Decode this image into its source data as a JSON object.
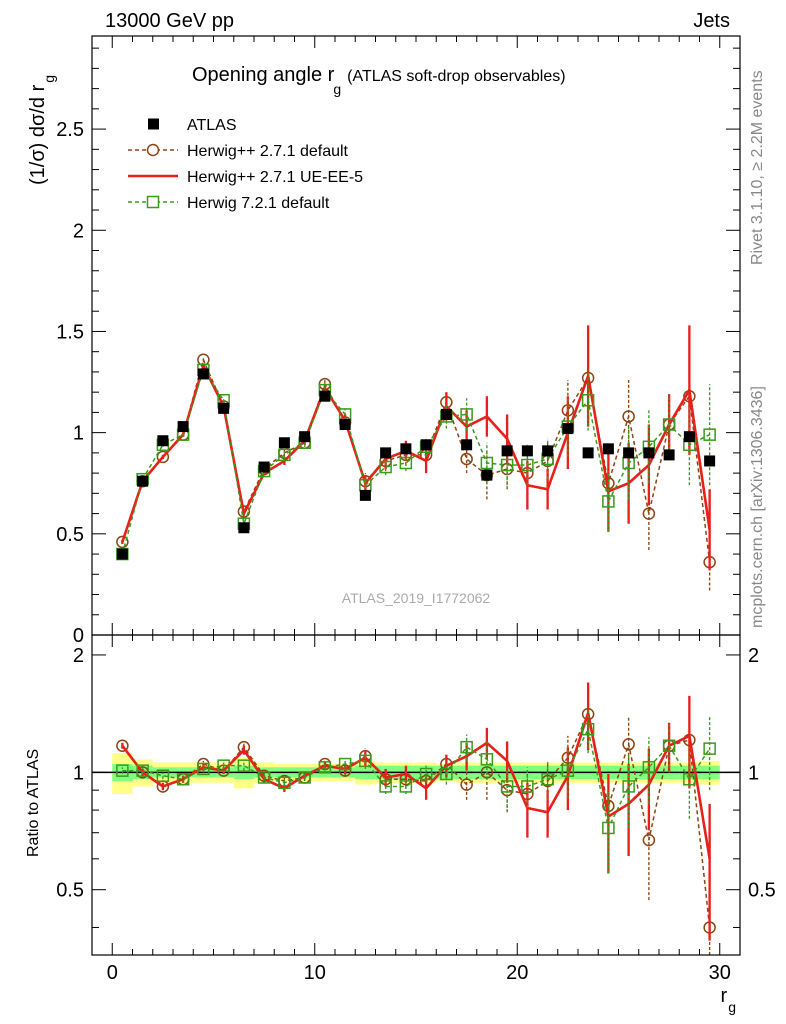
{
  "header": {
    "left": "13000 GeV pp",
    "right": "Jets"
  },
  "side_text": {
    "top": "Rivet 3.1.10, ≥ 2.2M events",
    "bottom": "mcplots.cern.ch [arXiv:1306.3436]"
  },
  "main_title": {
    "main": "Opening angle r",
    "sub": "g",
    "rest": "(ATLAS soft-drop observables)"
  },
  "watermark": "ATLAS_2019_I1772062",
  "colors": {
    "data": "#000000",
    "herwigpp_default": "#8B4513",
    "herwigpp_ueee5": "#e8201a",
    "herwig7": "#3a9a1a",
    "band_inner": "#80ff80",
    "band_outer": "#ffff88"
  },
  "chart_data": [
    {
      "type": "scatter",
      "panel": "main",
      "ylabel": "(1/σ) dσ/d r",
      "ylabel_sub": "g",
      "xlim": [
        -1,
        31
      ],
      "ylim": [
        0,
        2.96
      ],
      "yticks": [
        0,
        0.5,
        1,
        1.5,
        2,
        2.5
      ],
      "ytick_labels": [
        "0",
        "0.5",
        "1",
        "1.5",
        "2",
        "2.5"
      ],
      "x": [
        0.5,
        1.5,
        2.5,
        3.5,
        4.5,
        5.5,
        6.5,
        7.5,
        8.5,
        9.5,
        10.5,
        11.5,
        12.5,
        13.5,
        14.5,
        15.5,
        16.5,
        17.5,
        18.5,
        19.5,
        20.5,
        21.5,
        22.5,
        23.5,
        24.5,
        25.5,
        26.5,
        27.5,
        28.5,
        29.5
      ],
      "legend": [
        "ATLAS",
        "Herwig++ 2.7.1 default",
        "Herwig++ 2.7.1 UE-EE-5",
        "Herwig 7.2.1 default"
      ],
      "series": [
        {
          "name": "ATLAS",
          "values": [
            0.4,
            0.76,
            0.96,
            1.03,
            1.29,
            1.12,
            0.53,
            0.83,
            0.95,
            0.98,
            1.18,
            1.04,
            0.69,
            0.9,
            0.92,
            0.94,
            1.09,
            0.94,
            0.79,
            0.91,
            0.91,
            0.91,
            1.02,
            0.9,
            0.92,
            0.9,
            0.9,
            0.89,
            0.98,
            0.86
          ]
        },
        {
          "name": "Herwig++ 2.7.1 default",
          "values": [
            0.46,
            0.76,
            0.88,
            0.99,
            1.36,
            1.13,
            0.61,
            0.82,
            0.9,
            0.95,
            1.24,
            1.05,
            0.76,
            0.86,
            0.89,
            0.89,
            1.15,
            0.87,
            0.79,
            0.82,
            0.8,
            0.86,
            1.11,
            1.27,
            0.75,
            1.08,
            0.6,
            1.04,
            1.18,
            0.36
          ],
          "err": [
            0.01,
            0.01,
            0.01,
            0.01,
            0.01,
            0.01,
            0.01,
            0.01,
            0.02,
            0.02,
            0.02,
            0.03,
            0.04,
            0.05,
            0.05,
            0.06,
            0.05,
            0.07,
            0.12,
            0.1,
            0.1,
            0.1,
            0.15,
            0.2,
            0.15,
            0.18,
            0.18,
            0.15,
            0.2,
            0.14
          ]
        },
        {
          "name": "Herwig++ 2.7.1 UE-EE-5",
          "values": [
            0.46,
            0.76,
            0.88,
            0.99,
            1.33,
            1.13,
            0.6,
            0.8,
            0.86,
            0.96,
            1.22,
            1.06,
            0.75,
            0.87,
            0.91,
            0.86,
            1.13,
            1.03,
            1.08,
            0.97,
            0.74,
            0.72,
            1.0,
            1.28,
            0.71,
            0.75,
            0.84,
            1.04,
            1.21,
            0.52
          ],
          "err": [
            0.01,
            0.01,
            0.01,
            0.01,
            0.01,
            0.01,
            0.01,
            0.01,
            0.02,
            0.02,
            0.02,
            0.03,
            0.04,
            0.05,
            0.05,
            0.06,
            0.07,
            0.08,
            0.1,
            0.12,
            0.12,
            0.1,
            0.18,
            0.25,
            0.2,
            0.2,
            0.2,
            0.15,
            0.32,
            0.2
          ]
        },
        {
          "name": "Herwig 7.2.1 default",
          "values": [
            0.4,
            0.77,
            0.94,
            0.99,
            1.31,
            1.16,
            0.55,
            0.81,
            0.89,
            0.95,
            1.21,
            1.09,
            0.74,
            0.83,
            0.85,
            0.93,
            1.08,
            1.09,
            0.85,
            0.84,
            0.84,
            0.87,
            1.03,
            1.16,
            0.66,
            0.85,
            0.93,
            1.04,
            0.94,
            0.99
          ],
          "err": [
            0.01,
            0.01,
            0.01,
            0.01,
            0.01,
            0.01,
            0.01,
            0.01,
            0.02,
            0.02,
            0.02,
            0.03,
            0.04,
            0.04,
            0.04,
            0.05,
            0.06,
            0.08,
            0.1,
            0.1,
            0.1,
            0.1,
            0.15,
            0.15,
            0.15,
            0.18,
            0.18,
            0.15,
            0.2,
            0.25
          ]
        }
      ]
    },
    {
      "type": "scatter",
      "panel": "ratio",
      "ylabel": "Ratio to ATLAS",
      "xlabel": "r",
      "xlabel_sub": "g",
      "xlim": [
        -1,
        31
      ],
      "ylim": [
        0.34,
        2.25
      ],
      "xticks": [
        0,
        10,
        20,
        30
      ],
      "xtick_labels": [
        "0",
        "10",
        "20",
        "30"
      ],
      "yticks": [
        0.5,
        1,
        2
      ],
      "ytick_labels": [
        "0.5",
        "1",
        "2"
      ],
      "x": [
        0.5,
        1.5,
        2.5,
        3.5,
        4.5,
        5.5,
        6.5,
        7.5,
        8.5,
        9.5,
        10.5,
        11.5,
        12.5,
        13.5,
        14.5,
        15.5,
        16.5,
        17.5,
        18.5,
        19.5,
        20.5,
        21.5,
        22.5,
        23.5,
        24.5,
        25.5,
        26.5,
        27.5,
        28.5,
        29.5
      ],
      "bands": {
        "inner_half_width": [
          0.05,
          0.04,
          0.03,
          0.03,
          0.03,
          0.03,
          0.04,
          0.03,
          0.03,
          0.03,
          0.03,
          0.03,
          0.04,
          0.04,
          0.04,
          0.04,
          0.04,
          0.04,
          0.04,
          0.04,
          0.04,
          0.04,
          0.04,
          0.04,
          0.04,
          0.04,
          0.04,
          0.04,
          0.04,
          0.04
        ],
        "outer_half_width": [
          0.12,
          0.08,
          0.06,
          0.06,
          0.06,
          0.06,
          0.09,
          0.06,
          0.05,
          0.05,
          0.05,
          0.05,
          0.07,
          0.06,
          0.06,
          0.06,
          0.05,
          0.06,
          0.06,
          0.06,
          0.06,
          0.06,
          0.06,
          0.06,
          0.06,
          0.06,
          0.06,
          0.06,
          0.06,
          0.07
        ]
      },
      "series": [
        {
          "name": "Herwig++ 2.7.1 default",
          "values": [
            1.17,
            1.0,
            0.92,
            0.96,
            1.05,
            1.01,
            1.16,
            0.98,
            0.95,
            0.97,
            1.05,
            1.01,
            1.1,
            0.96,
            0.96,
            0.95,
            1.05,
            0.93,
            1.0,
            0.9,
            0.88,
            0.95,
            1.09,
            1.41,
            0.82,
            1.18,
            0.67,
            1.17,
            1.21,
            0.4
          ],
          "err": [
            0.02,
            0.02,
            0.02,
            0.02,
            0.02,
            0.02,
            0.03,
            0.02,
            0.02,
            0.02,
            0.02,
            0.03,
            0.05,
            0.05,
            0.05,
            0.06,
            0.05,
            0.08,
            0.15,
            0.11,
            0.11,
            0.11,
            0.15,
            0.22,
            0.17,
            0.2,
            0.2,
            0.17,
            0.2,
            0.16
          ]
        },
        {
          "name": "Herwig++ 2.7.1 UE-EE-5",
          "values": [
            1.17,
            1.0,
            0.92,
            0.96,
            1.03,
            1.01,
            1.14,
            0.96,
            0.91,
            0.98,
            1.04,
            1.02,
            1.09,
            0.97,
            0.99,
            0.91,
            1.04,
            1.1,
            1.19,
            1.07,
            0.81,
            0.79,
            0.98,
            1.42,
            0.77,
            0.83,
            0.93,
            1.17,
            1.24,
            0.6
          ],
          "err": [
            0.02,
            0.02,
            0.02,
            0.02,
            0.02,
            0.02,
            0.03,
            0.02,
            0.02,
            0.02,
            0.02,
            0.03,
            0.05,
            0.05,
            0.05,
            0.06,
            0.07,
            0.09,
            0.11,
            0.13,
            0.13,
            0.11,
            0.18,
            0.28,
            0.22,
            0.22,
            0.22,
            0.17,
            0.33,
            0.23
          ]
        },
        {
          "name": "Herwig 7.2.1 default",
          "values": [
            1.01,
            1.01,
            0.98,
            0.96,
            1.02,
            1.04,
            1.04,
            0.97,
            0.94,
            0.97,
            1.03,
            1.05,
            1.07,
            0.92,
            0.92,
            0.99,
            0.99,
            1.16,
            1.08,
            0.92,
            0.92,
            0.96,
            1.01,
            1.29,
            0.72,
            0.92,
            1.03,
            1.17,
            0.96,
            1.15
          ],
          "err": [
            0.02,
            0.02,
            0.02,
            0.02,
            0.02,
            0.02,
            0.03,
            0.02,
            0.02,
            0.02,
            0.02,
            0.03,
            0.05,
            0.04,
            0.04,
            0.05,
            0.06,
            0.09,
            0.12,
            0.11,
            0.11,
            0.11,
            0.15,
            0.17,
            0.17,
            0.2,
            0.2,
            0.17,
            0.2,
            0.25
          ]
        }
      ]
    }
  ]
}
